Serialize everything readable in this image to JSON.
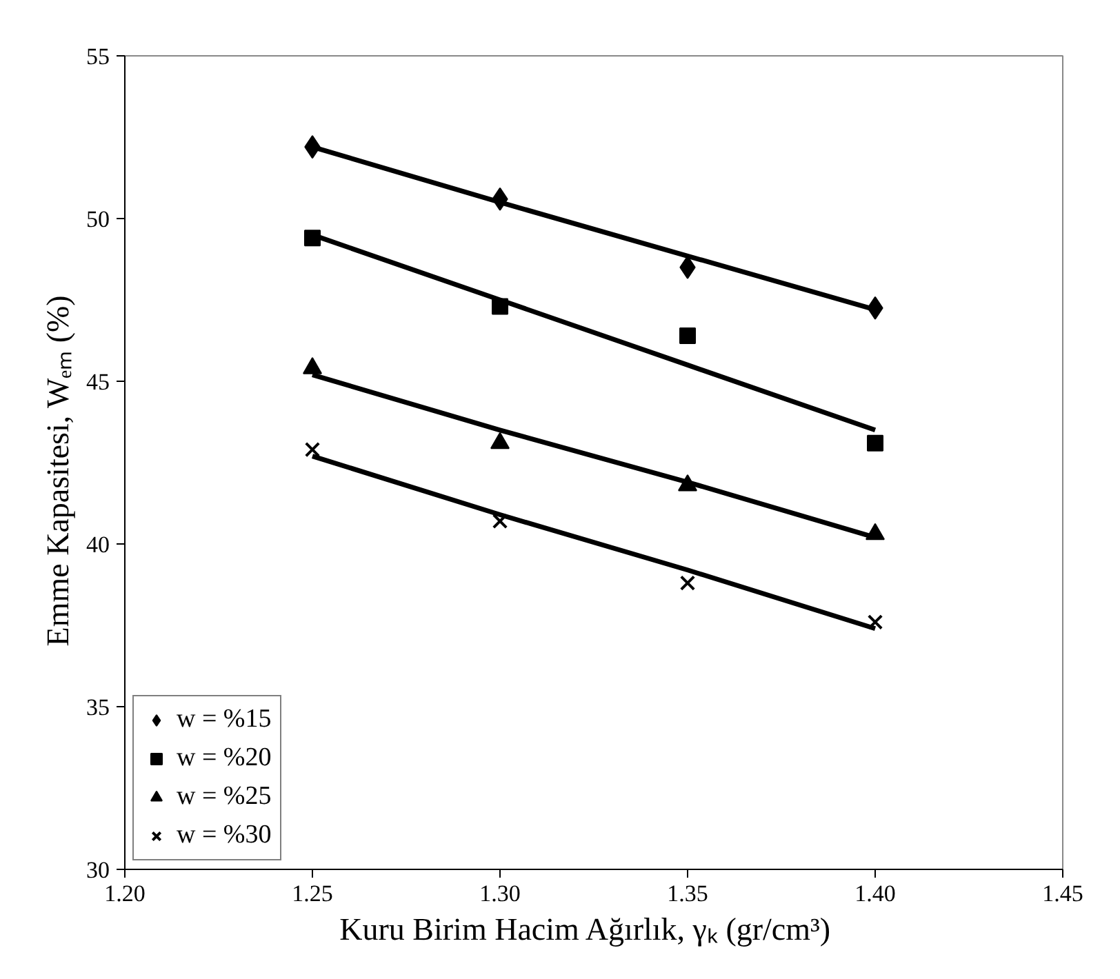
{
  "chart_data": {
    "type": "scatter",
    "xlabel": "Kuru Birim Hacim Ağırlık,  γₖ  (gr/cm³)",
    "ylabel": "Emme Kapasitesi,  Wₑₘ  (%)",
    "x": [
      1.25,
      1.3,
      1.35,
      1.4
    ],
    "xlim": [
      1.2,
      1.45
    ],
    "xticks": [
      {
        "value": 1.2,
        "label": "1.20"
      },
      {
        "value": 1.25,
        "label": "1.25"
      },
      {
        "value": 1.3,
        "label": "1.30"
      },
      {
        "value": 1.35,
        "label": "1.35"
      },
      {
        "value": 1.4,
        "label": "1.40"
      },
      {
        "value": 1.45,
        "label": "1.45"
      }
    ],
    "ylim": [
      30,
      55
    ],
    "yticks": [
      30,
      35,
      40,
      45,
      50,
      55
    ],
    "grid": false,
    "legend": "bottom left",
    "series": [
      {
        "name": "w = %15",
        "color": "#000000",
        "marker": "diamond",
        "values": [
          52.2,
          50.6,
          48.5,
          47.25
        ]
      },
      {
        "name": "w = %20",
        "color": "#000000",
        "marker": "square",
        "values": [
          49.4,
          47.3,
          46.4,
          43.1
        ]
      },
      {
        "name": "w = %25",
        "color": "#000000",
        "marker": "triangle",
        "values": [
          45.4,
          43.1,
          41.8,
          40.3
        ]
      },
      {
        "name": "w = %30",
        "color": "#000000",
        "marker": "cross",
        "values": [
          42.9,
          40.7,
          38.8,
          37.6
        ]
      },
      {
        "type": "line",
        "color": "#000000",
        "values": [
          52.2,
          50.5,
          48.85,
          47.2
        ]
      },
      {
        "type": "line",
        "color": "#000000",
        "values": [
          49.5,
          47.5,
          45.5,
          43.5
        ]
      },
      {
        "type": "line",
        "color": "#000000",
        "values": [
          45.2,
          43.5,
          41.9,
          40.2
        ]
      },
      {
        "type": "line",
        "color": "#000000",
        "values": [
          42.7,
          40.9,
          39.2,
          37.4
        ]
      }
    ]
  }
}
